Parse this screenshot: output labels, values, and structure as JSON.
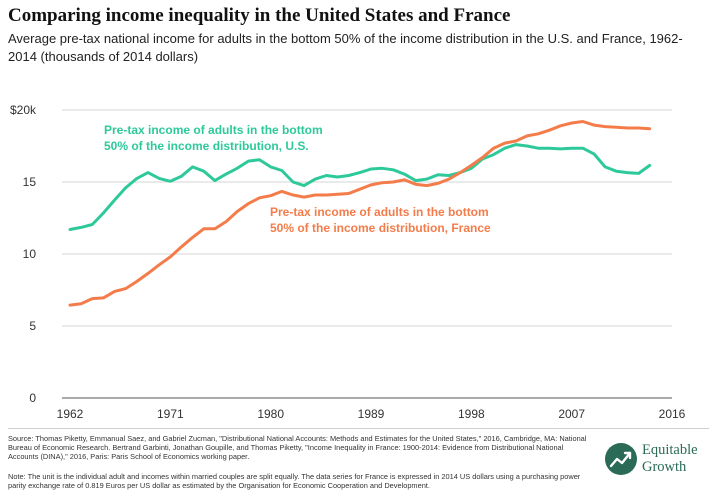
{
  "title": "Comparing income inequality in the United States and France",
  "subtitle": "Average pre-tax national income for adults in the bottom 50% of the income distribution in the U.S. and France, 1962-2014 (thousands of 2014 dollars)",
  "source": "Source: Thomas Piketty, Emmanual Saez, and Gabriel Zucman, \"Distributional National Accounts: Methods and Estimates for the United States,\" 2016, Cambridge, MA: National Bureau of Economic Research. Bertrand Garbinti, Jonathan Goupille, and Thomas Piketty, \"Income Inequality in France: 1900-2014: Evidence from Distributional National Accounts (DINA),\" 2016, Paris: Paris School of Economics working paper.",
  "note": "Note: The unit is the individual adult and incomes within married couples are split equally. The data series for France is expressed in 2014 US dollars using a purchasing power parity exchange rate of 0.819 Euros per US dollar as estimated by the Organisation for Economic Cooperation and Development.",
  "brand": {
    "line1": "Equitable",
    "line2": "Growth",
    "color": "#2a6a57",
    "icon": "growth-chart-icon"
  },
  "chart_data": {
    "type": "line",
    "xlim": [
      1962,
      2016
    ],
    "ylim": [
      0,
      20
    ],
    "x_ticks": [
      1962,
      1971,
      1980,
      1989,
      1998,
      2007,
      2016
    ],
    "y_ticks": [
      0,
      5,
      10,
      15,
      20
    ],
    "y_tick_labels": [
      "0",
      "5",
      "10",
      "15",
      "$20k"
    ],
    "grid": "horizontal",
    "series": [
      {
        "name": "Pre-tax income of adults in the bottom 50% of the income distribution, U.S.",
        "label_lines": [
          "Pre-tax income of adults in the bottom",
          "50% of the income distribution, U.S."
        ],
        "color": "#2ec99a",
        "x": [
          1962,
          1963,
          1964,
          1965,
          1966,
          1967,
          1968,
          1969,
          1970,
          1971,
          1972,
          1973,
          1974,
          1975,
          1976,
          1977,
          1978,
          1979,
          1980,
          1981,
          1982,
          1983,
          1984,
          1985,
          1986,
          1987,
          1988,
          1989,
          1990,
          1991,
          1992,
          1993,
          1994,
          1995,
          1996,
          1997,
          1998,
          1999,
          2000,
          2001,
          2002,
          2003,
          2004,
          2005,
          2006,
          2007,
          2008,
          2009,
          2010,
          2011,
          2012,
          2013,
          2014
        ],
        "y": [
          11.7,
          11.85,
          12.05,
          12.85,
          13.75,
          14.6,
          15.25,
          15.65,
          15.25,
          15.05,
          15.4,
          16.05,
          15.75,
          15.1,
          15.55,
          15.95,
          16.45,
          16.55,
          16.05,
          15.8,
          15.0,
          14.75,
          15.2,
          15.45,
          15.35,
          15.45,
          15.65,
          15.9,
          15.95,
          15.85,
          15.55,
          15.1,
          15.2,
          15.5,
          15.45,
          15.65,
          15.95,
          16.6,
          16.9,
          17.35,
          17.6,
          17.5,
          17.35,
          17.35,
          17.3,
          17.35,
          17.35,
          16.95,
          16.05,
          15.75,
          15.65,
          15.6,
          16.15
        ]
      },
      {
        "name": "Pre-tax income of adults in the bottom 50% of the income distribution, France",
        "label_lines": [
          "Pre-tax income of adults in the bottom",
          "50% of the income distribution, France"
        ],
        "color": "#f47c4a",
        "x": [
          1962,
          1963,
          1964,
          1965,
          1966,
          1967,
          1968,
          1969,
          1970,
          1971,
          1972,
          1973,
          1974,
          1975,
          1976,
          1977,
          1978,
          1979,
          1980,
          1981,
          1982,
          1983,
          1984,
          1985,
          1986,
          1987,
          1988,
          1989,
          1990,
          1991,
          1992,
          1993,
          1994,
          1995,
          1996,
          1997,
          1998,
          1999,
          2000,
          2001,
          2002,
          2003,
          2004,
          2005,
          2006,
          2007,
          2008,
          2009,
          2010,
          2011,
          2012,
          2013,
          2014
        ],
        "y": [
          6.45,
          6.55,
          6.9,
          6.95,
          7.4,
          7.6,
          8.1,
          8.65,
          9.25,
          9.8,
          10.5,
          11.15,
          11.75,
          11.75,
          12.25,
          12.95,
          13.5,
          13.9,
          14.05,
          14.35,
          14.1,
          13.95,
          14.1,
          14.1,
          14.15,
          14.2,
          14.5,
          14.8,
          14.95,
          15.0,
          15.15,
          14.85,
          14.75,
          14.9,
          15.2,
          15.65,
          16.15,
          16.7,
          17.35,
          17.7,
          17.85,
          18.2,
          18.35,
          18.6,
          18.9,
          19.1,
          19.2,
          18.95,
          18.85,
          18.8,
          18.75,
          18.75,
          18.7
        ]
      }
    ]
  }
}
